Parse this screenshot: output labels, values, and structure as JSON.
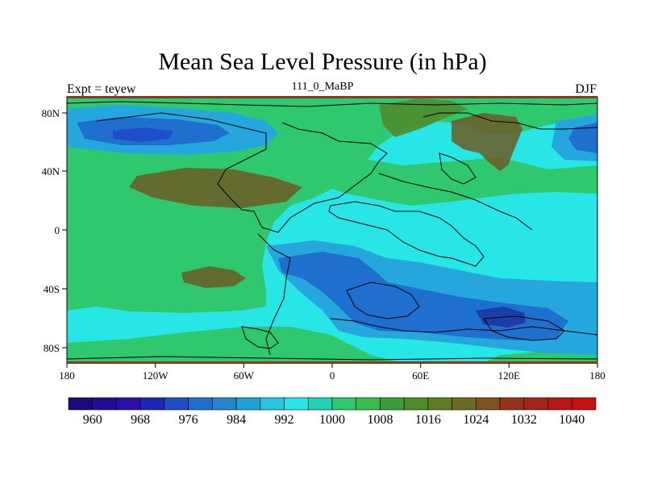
{
  "title": "Mean Sea Level Pressure (in hPa)",
  "subtitle_left": "Expt = teyew",
  "subtitle_center": "111_0_MaBP",
  "subtitle_right": "DJF",
  "x_ticks": [
    "180",
    "120W",
    "60W",
    "0",
    "60E",
    "120E",
    "180"
  ],
  "y_ticks": [
    "80N",
    "40N",
    "0",
    "40S",
    "80S"
  ],
  "colorbar": {
    "colors": [
      "#1a0a82",
      "#220b95",
      "#2a10a8",
      "#1e24b8",
      "#1e4fc8",
      "#1f6fcf",
      "#2586d0",
      "#1fa2d8",
      "#25c6e0",
      "#28e6e6",
      "#1fd2b4",
      "#2fc86e",
      "#3bbb4a",
      "#3c9c3a",
      "#4e8c2c",
      "#5e7c26",
      "#6d6a22",
      "#80501e",
      "#93341a",
      "#a52418",
      "#b81616",
      "#c81010"
    ],
    "labels": [
      "960",
      "968",
      "976",
      "984",
      "992",
      "1000",
      "1008",
      "1016",
      "1024",
      "1032",
      "1040"
    ]
  },
  "map_legend_colors": {
    "deep_low": "#1a3ea8",
    "low": "#1f6fcf",
    "mid_low": "#25a6dc",
    "neutral": "#28e6e6",
    "mid_high": "#2fc86e",
    "high": "#4e8c2c",
    "very_high": "#6d5a24"
  }
}
